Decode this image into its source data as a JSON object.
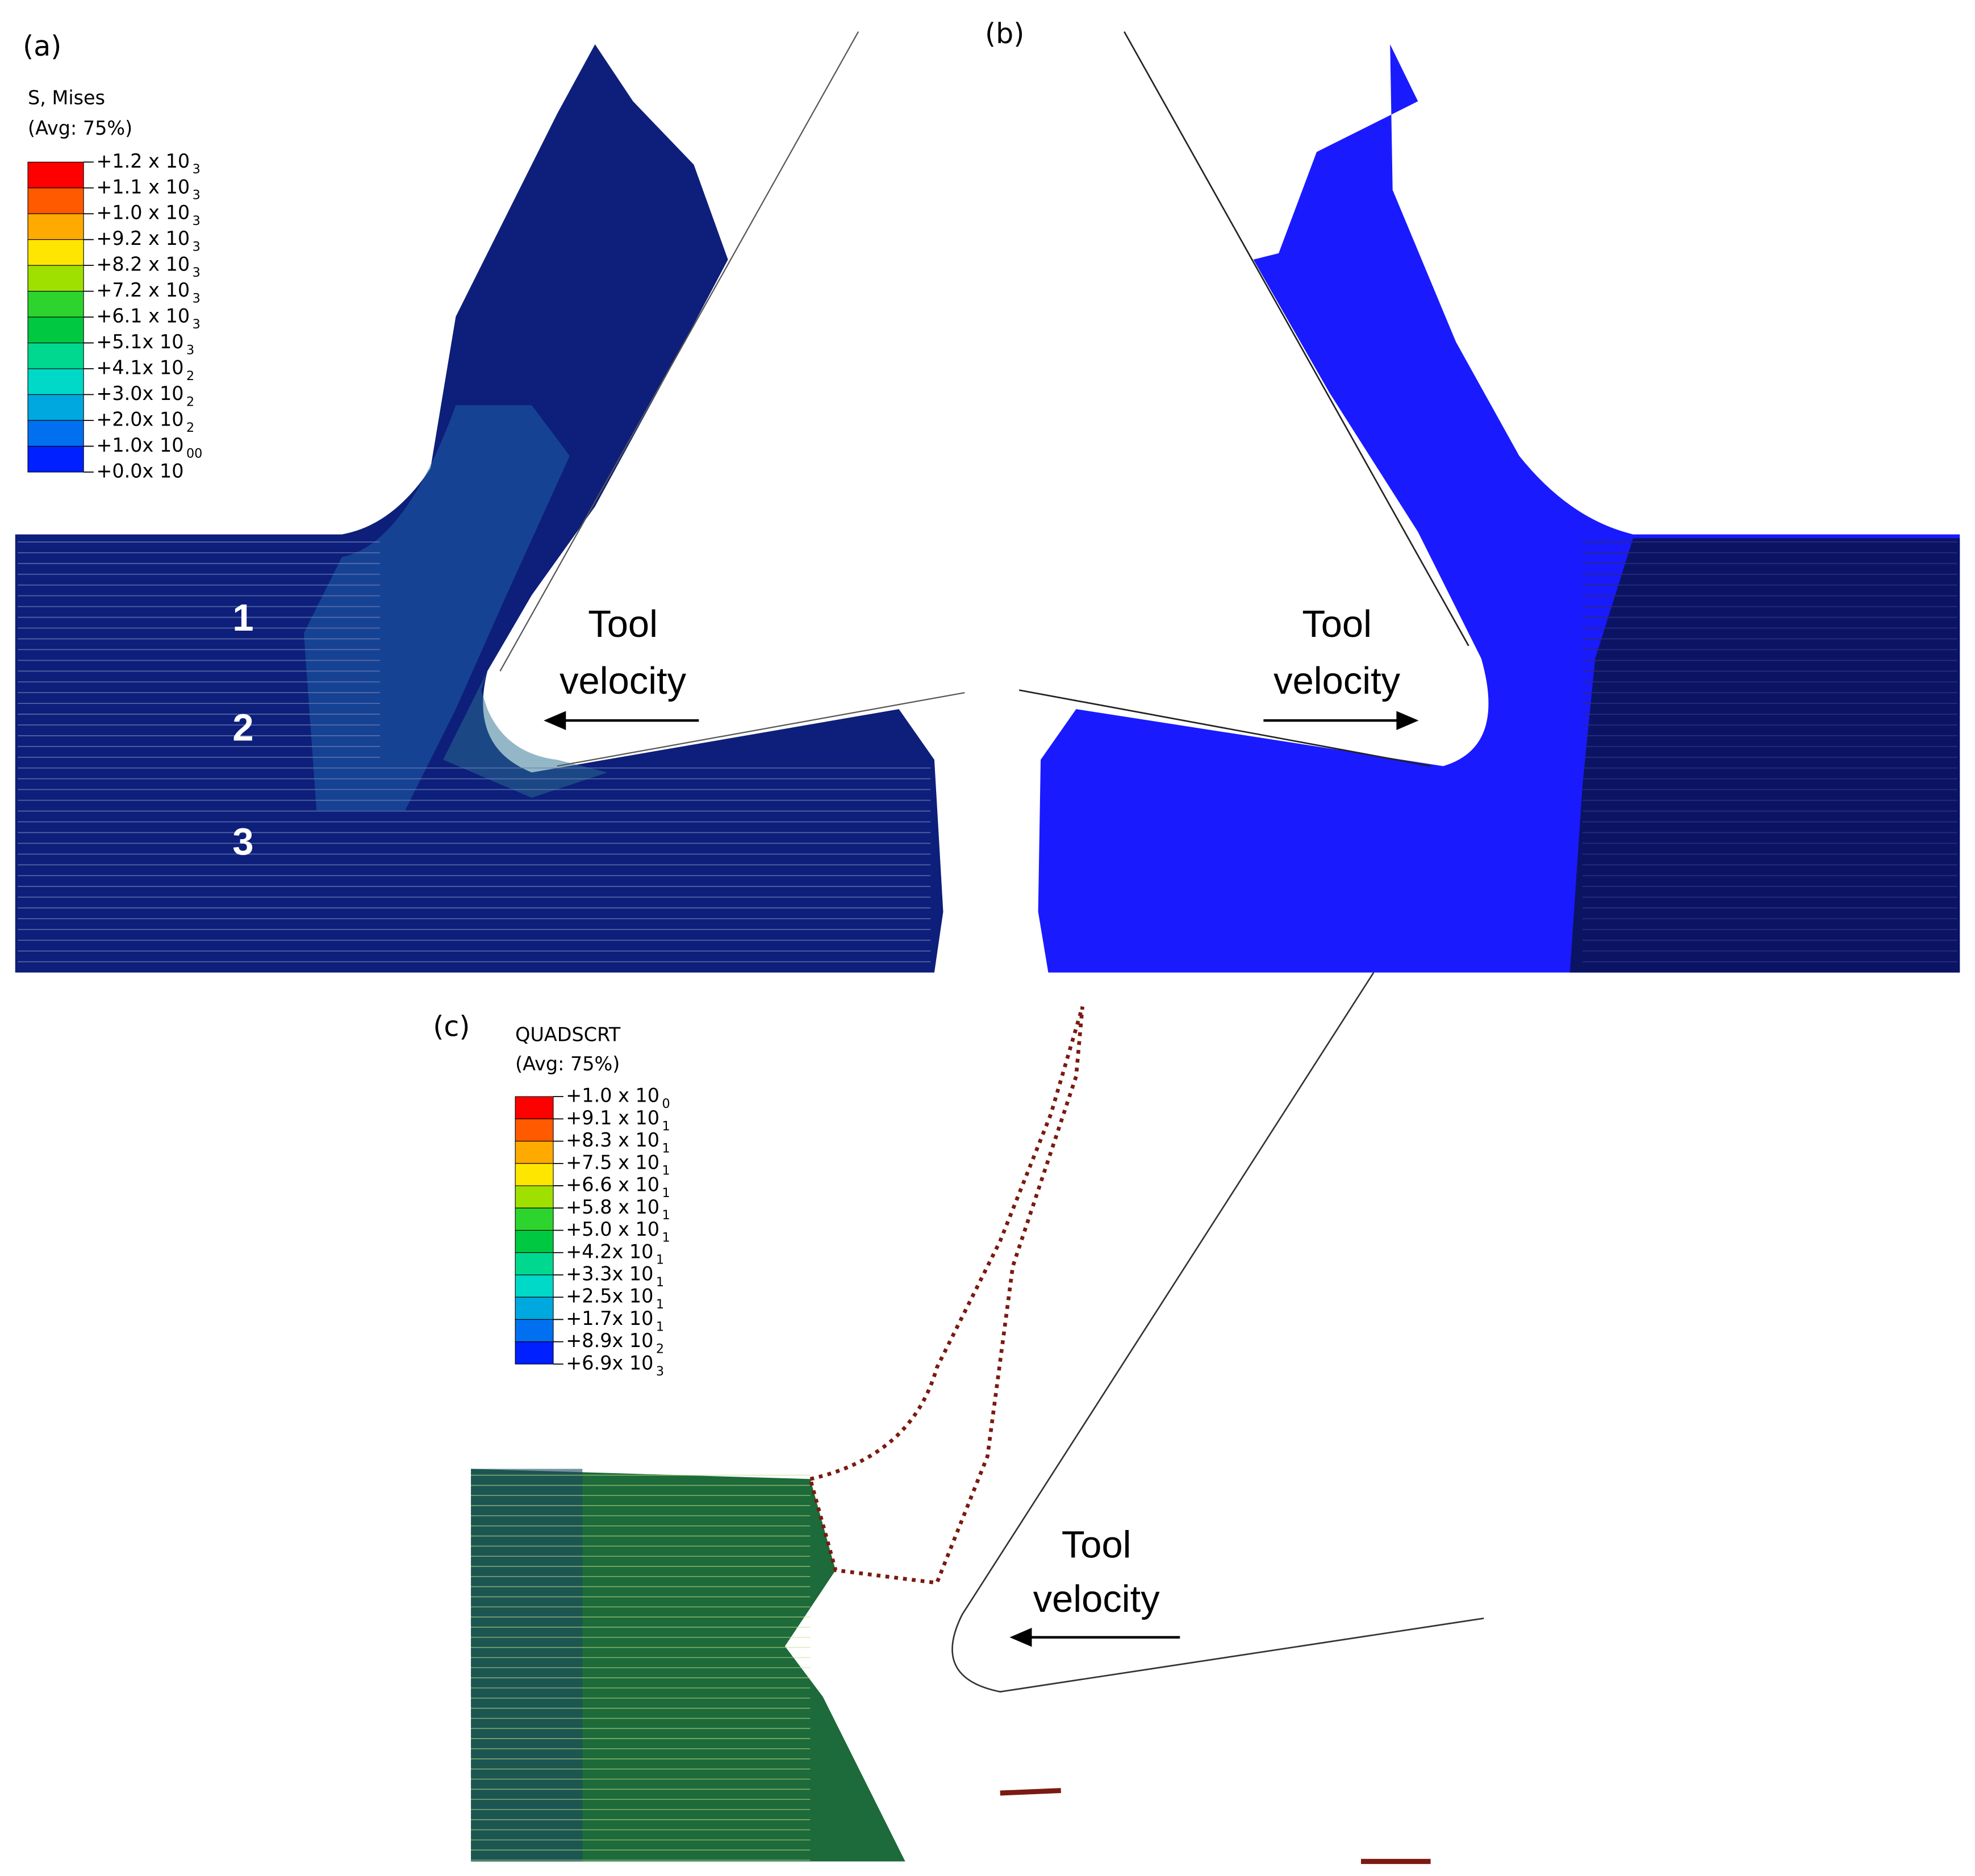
{
  "panels": [
    {
      "label": "(a)"
    },
    {
      "label": "(b)"
    },
    {
      "label": "(c)"
    }
  ],
  "legend_a": {
    "title": "S, Mises",
    "subtitle": "(Avg: 75%)",
    "entries": [
      {
        "text": "+1.2 x 10",
        "exp": "3"
      },
      {
        "text": "+1.1 x 10",
        "exp": "3"
      },
      {
        "text": "+1.0 x 10",
        "exp": "3"
      },
      {
        "text": "+9.2 x 10",
        "exp": "3"
      },
      {
        "text": "+8.2 x 10",
        "exp": "3"
      },
      {
        "text": "+7.2 x 10",
        "exp": "3"
      },
      {
        "text": "+6.1 x 10",
        "exp": "3"
      },
      {
        "text": "+5.1x 10",
        "exp": "3"
      },
      {
        "text": "+4.1x 10",
        "exp": "2"
      },
      {
        "text": "+3.0x 10",
        "exp": "2"
      },
      {
        "text": "+2.0x 10",
        "exp": "2"
      },
      {
        "text": "+1.0x 10",
        "exp": "00"
      },
      {
        "text": "+0.0x 10"
      }
    ]
  },
  "legend_c": {
    "title": "QUADSCRT",
    "subtitle": "(Avg: 75%)",
    "entries": [
      {
        "text": "+1.0 x 10",
        "exp": "0"
      },
      {
        "text": "+9.1 x 10",
        "exp": "1"
      },
      {
        "text": "+8.3 x 10",
        "exp": "1"
      },
      {
        "text": "+7.5 x 10",
        "exp": "1"
      },
      {
        "text": "+6.6 x 10",
        "exp": "1"
      },
      {
        "text": "+5.8 x 10",
        "exp": "1"
      },
      {
        "text": "+5.0 x 10",
        "exp": "1"
      },
      {
        "text": "+4.2x 10",
        "exp": "1"
      },
      {
        "text": "+3.3x 10",
        "exp": "1"
      },
      {
        "text": "+2.5x 10",
        "exp": "1"
      },
      {
        "text": "+1.7x 10",
        "exp": "1"
      },
      {
        "text": "+8.9x 10",
        "exp": "2"
      },
      {
        "text": "+6.9x 10",
        "exp": "3"
      }
    ]
  },
  "zones": [
    "1",
    "2",
    "3"
  ],
  "tool_a": [
    "Tool",
    "velocity"
  ],
  "tool_b": [
    "Tool",
    "velocity"
  ],
  "tool_c": [
    "Tool",
    "velocity"
  ]
}
